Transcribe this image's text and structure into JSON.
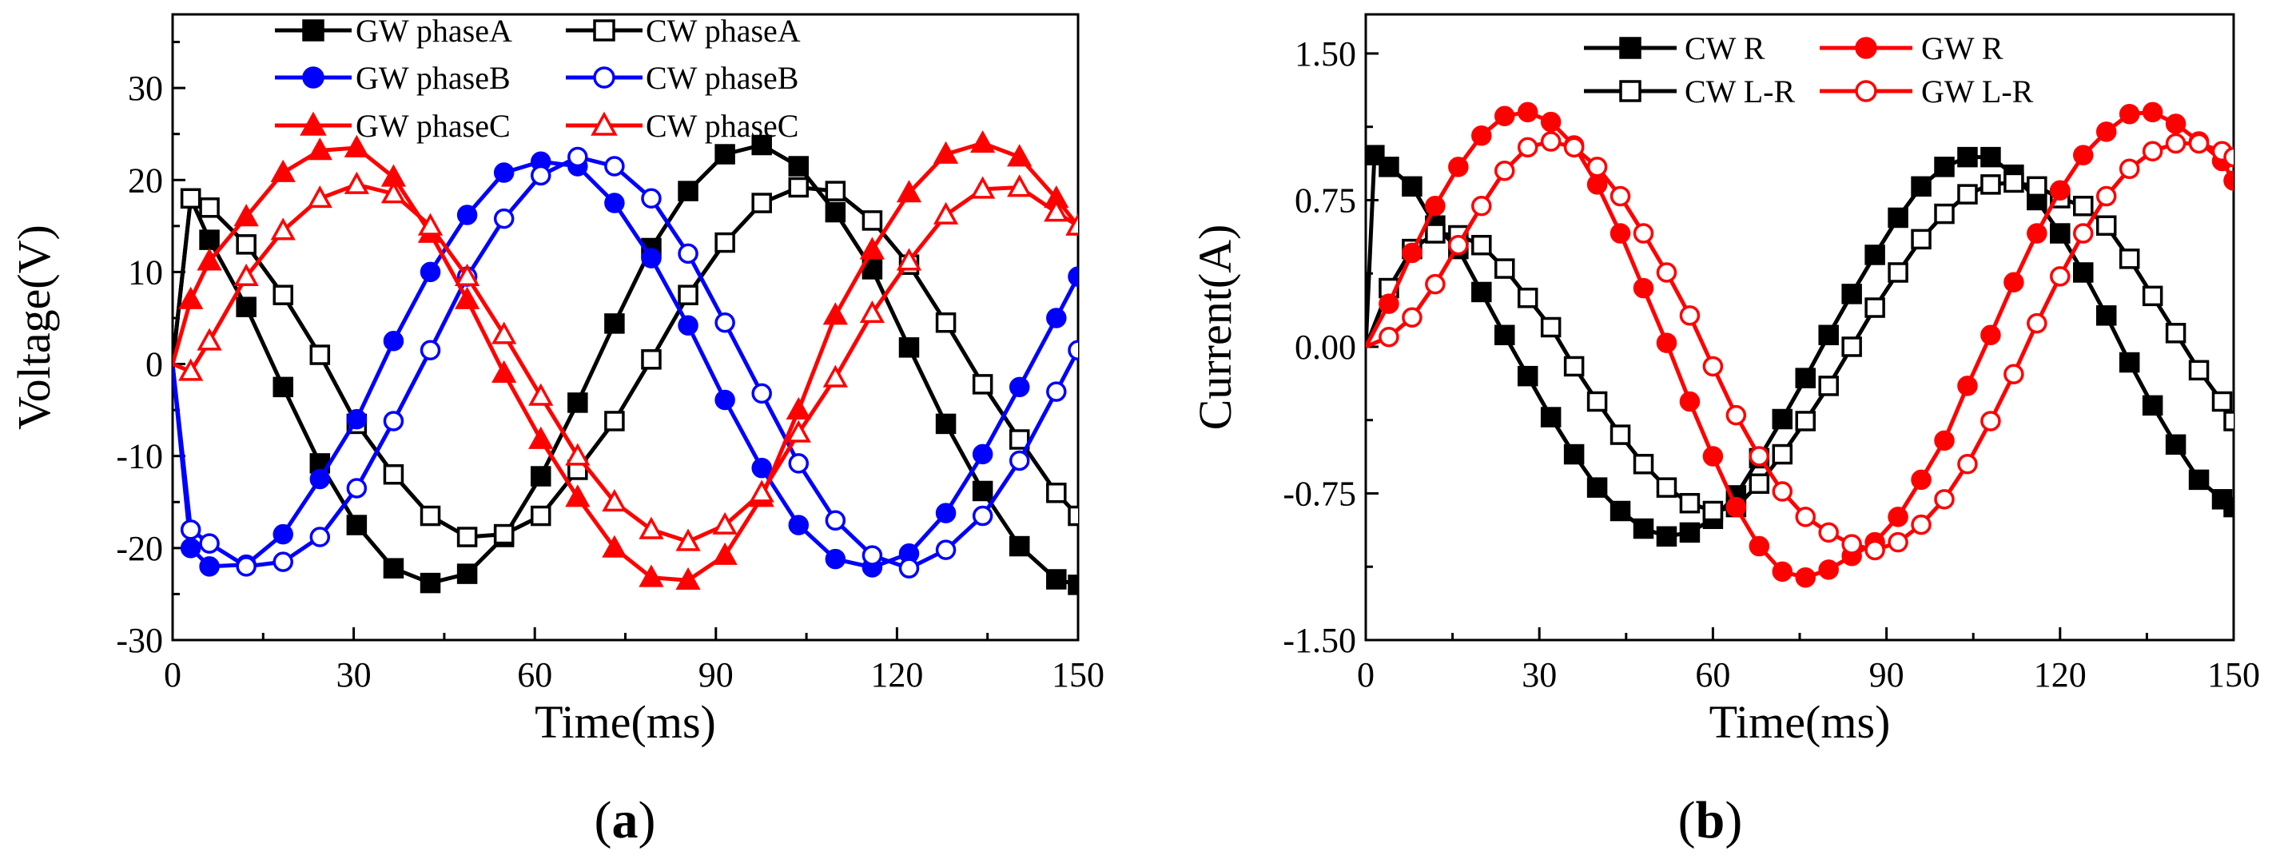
{
  "chart_data": [
    {
      "type": "line",
      "panel_label": "a",
      "xlabel": "Time(ms)",
      "ylabel": "Voltage(V)",
      "xlim": [
        0,
        150
      ],
      "ylim": [
        -30,
        38
      ],
      "xticks": [
        0,
        30,
        60,
        90,
        120,
        150
      ],
      "xtick_labels": [
        "0",
        "30",
        "60",
        "90",
        "120",
        "150"
      ],
      "yticks": [
        -30,
        -20,
        -10,
        0,
        10,
        20,
        30
      ],
      "ytick_labels": [
        "-30",
        "-20",
        "-10",
        "0",
        "10",
        "20",
        "30"
      ],
      "legend": "top, three rows by two columns",
      "series": [
        {
          "name": "GW phaseA",
          "color": "#000000",
          "marker": "square",
          "filled": true,
          "x": [
            0,
            3,
            6.1,
            12.2,
            18.3,
            24.4,
            30.5,
            36.6,
            42.7,
            48.8,
            54.9,
            61,
            67.1,
            73.2,
            79.3,
            85.4,
            91.5,
            97.6,
            103.7,
            109.8,
            115.9,
            122,
            128.1,
            134.2,
            140.3,
            146.4,
            150
          ],
          "y": [
            0,
            18,
            13.5,
            6.2,
            -2.5,
            -10.8,
            -17.5,
            -22.2,
            -23.8,
            -22.8,
            -18.8,
            -12.2,
            -4.2,
            4.4,
            12.6,
            18.8,
            22.8,
            23.8,
            21.5,
            16.5,
            10.3,
            1.8,
            -6.5,
            -13.8,
            -19.8,
            -23.4,
            -24
          ]
        },
        {
          "name": "CW phaseA",
          "color": "#000000",
          "marker": "square",
          "filled": false,
          "x": [
            0,
            3,
            6.1,
            12.2,
            18.3,
            24.4,
            30.5,
            36.6,
            42.7,
            48.8,
            54.9,
            61,
            67.1,
            73.2,
            79.3,
            85.4,
            91.5,
            97.6,
            103.7,
            109.8,
            115.9,
            122,
            128.1,
            134.2,
            140.3,
            146.4,
            150
          ],
          "y": [
            0,
            18,
            17,
            13,
            7.5,
            1,
            -6.5,
            -12,
            -16.5,
            -18.8,
            -18.5,
            -16.5,
            -11.5,
            -6.2,
            0.5,
            7.5,
            13.2,
            17.5,
            19.2,
            18.8,
            15.6,
            10.8,
            4.5,
            -2.2,
            -8.2,
            -14,
            -16.5
          ]
        },
        {
          "name": "GW phaseB",
          "color": "#0000ff",
          "marker": "circle",
          "filled": true,
          "x": [
            0,
            3,
            6.1,
            12.2,
            18.3,
            24.4,
            30.5,
            36.6,
            42.7,
            48.8,
            54.9,
            61,
            67.1,
            73.2,
            79.3,
            85.4,
            91.5,
            97.6,
            103.7,
            109.8,
            115.9,
            122,
            128.1,
            134.2,
            140.3,
            146.4,
            150
          ],
          "y": [
            0,
            -20,
            -22,
            -21.8,
            -18.5,
            -12.5,
            -6,
            2.5,
            10,
            16.2,
            20.8,
            22,
            21.5,
            17.5,
            11.5,
            4.2,
            -3.9,
            -11.3,
            -17.5,
            -21.2,
            -22.1,
            -20.6,
            -16.2,
            -9.8,
            -2.5,
            5,
            9.5
          ]
        },
        {
          "name": "CW phaseB",
          "color": "#0000ff",
          "marker": "circle",
          "filled": false,
          "x": [
            0,
            3,
            6.1,
            12.2,
            18.3,
            24.4,
            30.5,
            36.6,
            42.7,
            48.8,
            54.9,
            61,
            67.1,
            73.2,
            79.3,
            85.4,
            91.5,
            97.6,
            103.7,
            109.8,
            115.9,
            122,
            128.1,
            134.2,
            140.3,
            146.4,
            150
          ],
          "y": [
            0,
            -18,
            -19.5,
            -22,
            -21.5,
            -18.8,
            -13.5,
            -6.2,
            1.5,
            9.5,
            15.8,
            20.5,
            22.5,
            21.5,
            18,
            12,
            4.5,
            -3.2,
            -10.8,
            -17,
            -20.8,
            -22.2,
            -20.2,
            -16.5,
            -10.5,
            -3,
            1.5
          ]
        },
        {
          "name": "GW phaseC",
          "color": "#ff0000",
          "marker": "triangle",
          "filled": true,
          "x": [
            0,
            3,
            6.1,
            12.2,
            18.3,
            24.4,
            30.5,
            36.6,
            42.7,
            48.8,
            54.9,
            61,
            67.1,
            73.2,
            79.3,
            85.4,
            91.5,
            97.6,
            103.7,
            109.8,
            115.9,
            122,
            128.1,
            134.2,
            140.3,
            146.4,
            150
          ],
          "y": [
            0,
            7,
            11.2,
            16,
            20.8,
            23.2,
            23.5,
            20.3,
            14.2,
            7,
            -1,
            -8.2,
            -14.5,
            -20,
            -23.2,
            -23.5,
            -20.8,
            -14.5,
            -5,
            5.3,
            12.4,
            18.6,
            22.8,
            24,
            22.5,
            18,
            15
          ]
        },
        {
          "name": "CW phaseC",
          "color": "#ff0000",
          "marker": "triangle",
          "filled": false,
          "x": [
            0,
            3,
            6.1,
            12.2,
            18.3,
            24.4,
            30.5,
            36.6,
            42.7,
            48.8,
            54.9,
            61,
            67.1,
            73.2,
            79.3,
            85.4,
            91.5,
            97.6,
            103.7,
            109.8,
            115.9,
            122,
            128.1,
            134.2,
            140.3,
            146.4,
            150
          ],
          "y": [
            0,
            -0.8,
            2.5,
            9.5,
            14.5,
            18,
            19.5,
            18.5,
            15,
            9.5,
            3.2,
            -3.5,
            -10,
            -15,
            -18,
            -19.3,
            -17.5,
            -14,
            -7.5,
            -1.5,
            5.5,
            11.2,
            16.2,
            19,
            19.2,
            16.5,
            15
          ]
        }
      ]
    },
    {
      "type": "line",
      "panel_label": "b",
      "xlabel": "Time(ms)",
      "ylabel": "Current(A)",
      "xlim": [
        0,
        150
      ],
      "ylim": [
        -1.5,
        1.7
      ],
      "xticks": [
        0,
        30,
        60,
        90,
        120,
        150
      ],
      "xtick_labels": [
        "0",
        "30",
        "60",
        "90",
        "120",
        "150"
      ],
      "yticks": [
        -1.5,
        -0.75,
        0,
        0.75,
        1.5
      ],
      "ytick_labels": [
        "-1.50",
        "-0.75",
        "0.00",
        "0.75",
        "1.50"
      ],
      "legend": "top, two rows by two columns",
      "series": [
        {
          "name": "CW R",
          "color": "#000000",
          "marker": "square",
          "filled": true,
          "x": [
            0,
            1.5,
            4,
            8,
            12,
            16,
            20,
            24,
            28,
            32,
            36,
            40,
            44,
            48,
            52,
            56,
            60,
            64,
            68,
            72,
            76,
            80,
            84,
            88,
            92,
            96,
            100,
            104,
            108,
            112,
            116,
            120,
            124,
            128,
            132,
            136,
            140,
            144,
            148,
            150
          ],
          "y": [
            0,
            0.98,
            0.92,
            0.82,
            0.62,
            0.5,
            0.28,
            0.06,
            -0.15,
            -0.36,
            -0.55,
            -0.72,
            -0.84,
            -0.93,
            -0.97,
            -0.95,
            -0.88,
            -0.76,
            -0.57,
            -0.37,
            -0.16,
            0.06,
            0.27,
            0.47,
            0.66,
            0.82,
            0.92,
            0.97,
            0.97,
            0.88,
            0.75,
            0.58,
            0.38,
            0.16,
            -0.08,
            -0.3,
            -0.5,
            -0.68,
            -0.78,
            -0.82
          ]
        },
        {
          "name": "CW L-R",
          "color": "#000000",
          "marker": "square",
          "filled": false,
          "x": [
            0,
            4,
            8,
            12,
            16,
            20,
            24,
            28,
            32,
            36,
            40,
            44,
            48,
            52,
            56,
            60,
            64,
            68,
            72,
            76,
            80,
            84,
            88,
            92,
            96,
            100,
            104,
            108,
            112,
            116,
            120,
            124,
            128,
            132,
            136,
            140,
            144,
            148,
            150
          ],
          "y": [
            0,
            0.3,
            0.5,
            0.58,
            0.57,
            0.52,
            0.4,
            0.25,
            0.1,
            -0.1,
            -0.28,
            -0.45,
            -0.6,
            -0.72,
            -0.8,
            -0.84,
            -0.82,
            -0.7,
            -0.55,
            -0.38,
            -0.2,
            0,
            0.2,
            0.38,
            0.55,
            0.68,
            0.78,
            0.83,
            0.84,
            0.82,
            0.76,
            0.72,
            0.62,
            0.45,
            0.26,
            0.07,
            -0.12,
            -0.28,
            -0.38
          ]
        },
        {
          "name": "GW R",
          "color": "#ff0000",
          "marker": "circle",
          "filled": true,
          "x": [
            0,
            4,
            8,
            12,
            16,
            20,
            24,
            28,
            32,
            36,
            40,
            44,
            48,
            52,
            56,
            60,
            64,
            68,
            72,
            76,
            80,
            84,
            88,
            92,
            96,
            100,
            104,
            108,
            112,
            116,
            120,
            124,
            128,
            132,
            136,
            140,
            144,
            148,
            150
          ],
          "y": [
            0,
            0.22,
            0.48,
            0.72,
            0.92,
            1.08,
            1.18,
            1.2,
            1.15,
            1.03,
            0.83,
            0.58,
            0.3,
            0.02,
            -0.28,
            -0.56,
            -0.82,
            -1.02,
            -1.15,
            -1.18,
            -1.14,
            -1.07,
            -1.0,
            -0.87,
            -0.68,
            -0.48,
            -0.2,
            0.06,
            0.33,
            0.58,
            0.8,
            0.98,
            1.1,
            1.19,
            1.2,
            1.14,
            1.05,
            0.95,
            0.85
          ]
        },
        {
          "name": "GW L-R",
          "color": "#ff0000",
          "marker": "circle",
          "filled": false,
          "x": [
            0,
            4,
            8,
            12,
            16,
            20,
            24,
            28,
            32,
            36,
            40,
            44,
            48,
            52,
            56,
            60,
            64,
            68,
            72,
            76,
            80,
            84,
            88,
            92,
            96,
            100,
            104,
            108,
            112,
            116,
            120,
            124,
            128,
            132,
            136,
            140,
            144,
            148,
            150
          ],
          "y": [
            0,
            0.05,
            0.15,
            0.32,
            0.52,
            0.72,
            0.9,
            1.02,
            1.05,
            1.02,
            0.92,
            0.77,
            0.58,
            0.38,
            0.16,
            -0.1,
            -0.35,
            -0.56,
            -0.74,
            -0.87,
            -0.95,
            -1.01,
            -1.04,
            -1.0,
            -0.91,
            -0.78,
            -0.6,
            -0.38,
            -0.14,
            0.12,
            0.36,
            0.58,
            0.77,
            0.91,
            1.0,
            1.04,
            1.04,
            1.0,
            0.97
          ]
        }
      ]
    }
  ]
}
